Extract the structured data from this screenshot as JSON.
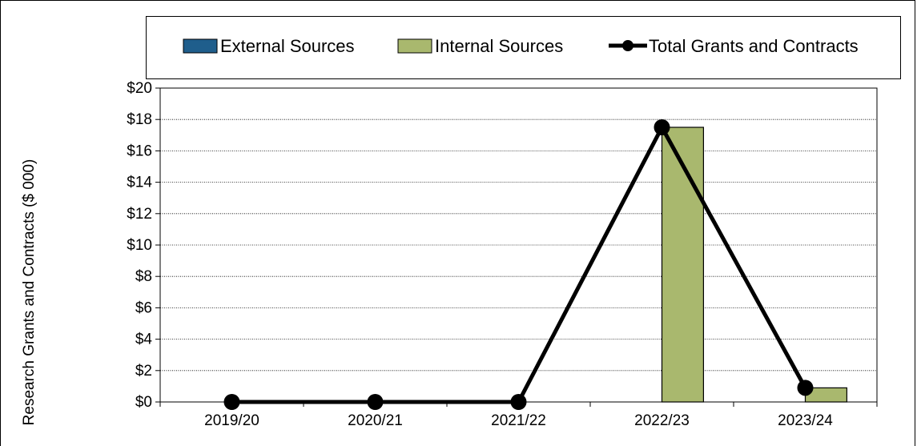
{
  "chart_data": {
    "type": "bar",
    "title": "",
    "xlabel": "",
    "ylabel": "Research Grants and Contracts ($ 000)",
    "categories": [
      "2019/20",
      "2020/21",
      "2021/22",
      "2022/23",
      "2023/24"
    ],
    "ylim": [
      0,
      20
    ],
    "y_ticks": [
      0,
      2,
      4,
      6,
      8,
      10,
      12,
      14,
      16,
      18,
      20
    ],
    "y_tick_labels": [
      "$0",
      "$2",
      "$4",
      "$6",
      "$8",
      "$10",
      "$12",
      "$14",
      "$16",
      "$18",
      "$20"
    ],
    "grid": true,
    "legend_position": "top",
    "series": [
      {
        "name": "External Sources",
        "kind": "bar",
        "color": "#1f5e8c",
        "values": [
          0,
          0,
          0,
          0,
          0
        ]
      },
      {
        "name": "Internal Sources",
        "kind": "bar",
        "color": "#a9b86e",
        "values": [
          0,
          0,
          0,
          17.5,
          0.9
        ]
      },
      {
        "name": "Total Grants and Contracts",
        "kind": "line",
        "color": "#000000",
        "values": [
          0,
          0,
          0,
          17.5,
          0.9
        ]
      }
    ]
  }
}
